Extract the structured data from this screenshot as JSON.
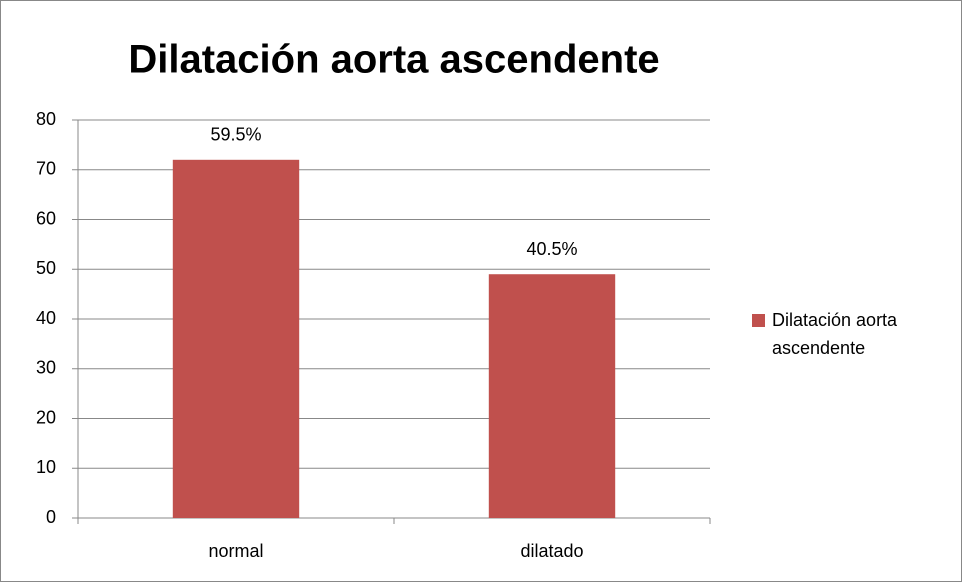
{
  "chart_data": {
    "type": "bar",
    "title": "Dilatación aorta ascendente",
    "categories": [
      "normal",
      "dilatado"
    ],
    "series": [
      {
        "name": "Dilatación aorta ascendente",
        "color": "#c0504d",
        "values": [
          72,
          49
        ]
      }
    ],
    "annotations": [
      "59.5%",
      "40.5%"
    ],
    "ylim": [
      0,
      80
    ],
    "yticks": [
      0,
      10,
      20,
      30,
      40,
      50,
      60,
      70,
      80
    ],
    "grid": true,
    "legend": "right"
  }
}
